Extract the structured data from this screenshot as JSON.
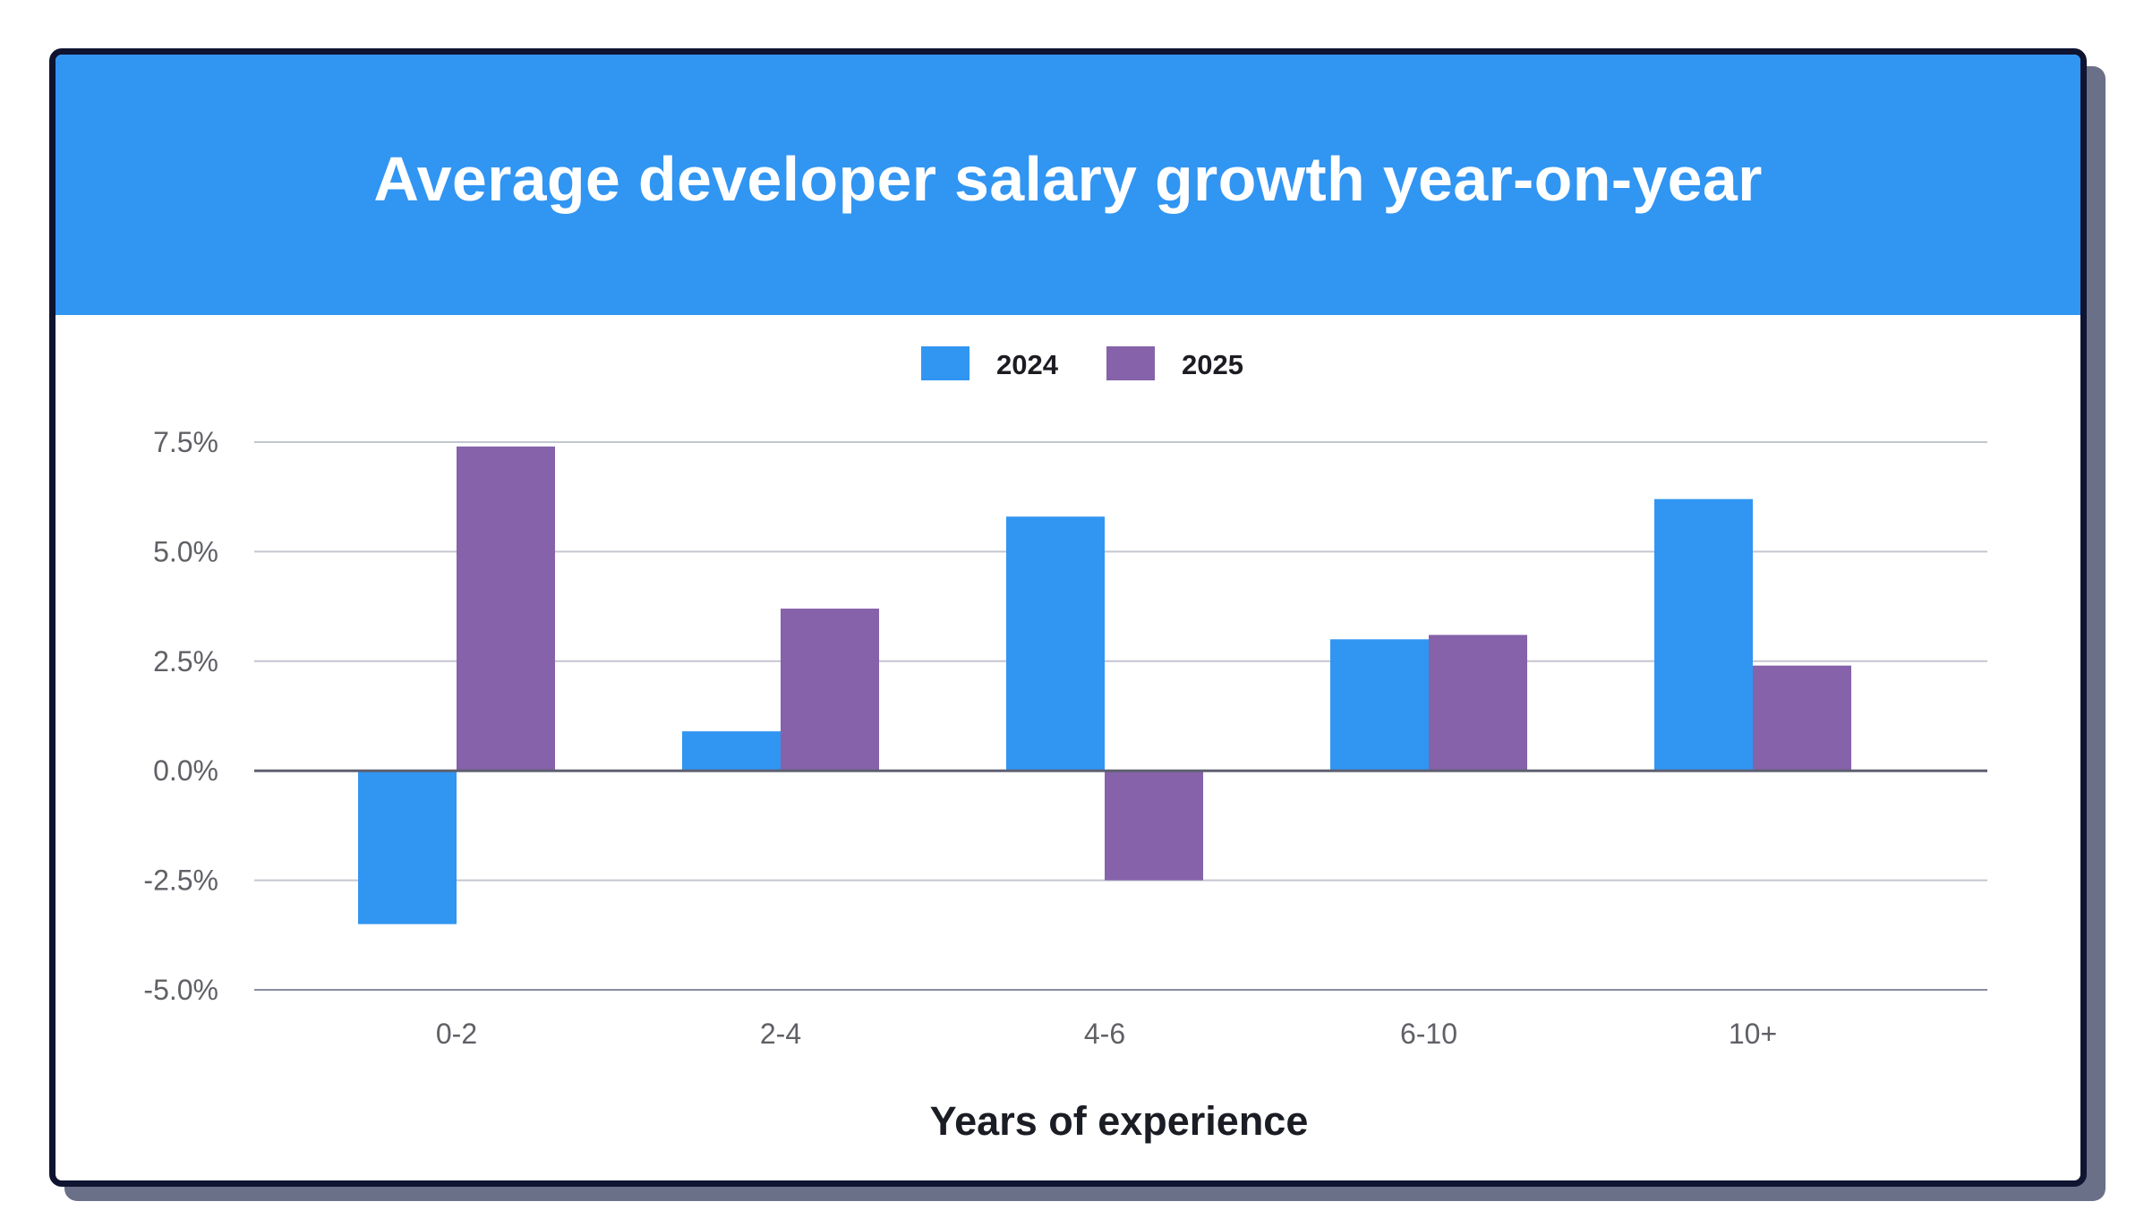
{
  "chart_data": {
    "type": "bar",
    "title": "Average developer salary growth year-on-year",
    "xlabel": "Years of experience",
    "ylabel": "",
    "categories": [
      "0-2",
      "2-4",
      "4-6",
      "6-10",
      "10+"
    ],
    "series": [
      {
        "name": "2024",
        "color": "#3195f2",
        "values": [
          -3.5,
          0.9,
          5.8,
          3.0,
          6.2
        ]
      },
      {
        "name": "2025",
        "color": "#8562a9",
        "values": [
          7.4,
          3.7,
          -2.5,
          3.1,
          2.4
        ]
      }
    ],
    "ylim": [
      -5.0,
      7.5
    ],
    "yticks": [
      7.5,
      5.0,
      2.5,
      0.0,
      -2.5,
      -5.0
    ],
    "ytick_labels": [
      "7.5%",
      "5.0%",
      "2.5%",
      "0.0%",
      "-2.5%",
      "-5.0%"
    ],
    "grid": true,
    "legend_position": "top-center"
  }
}
